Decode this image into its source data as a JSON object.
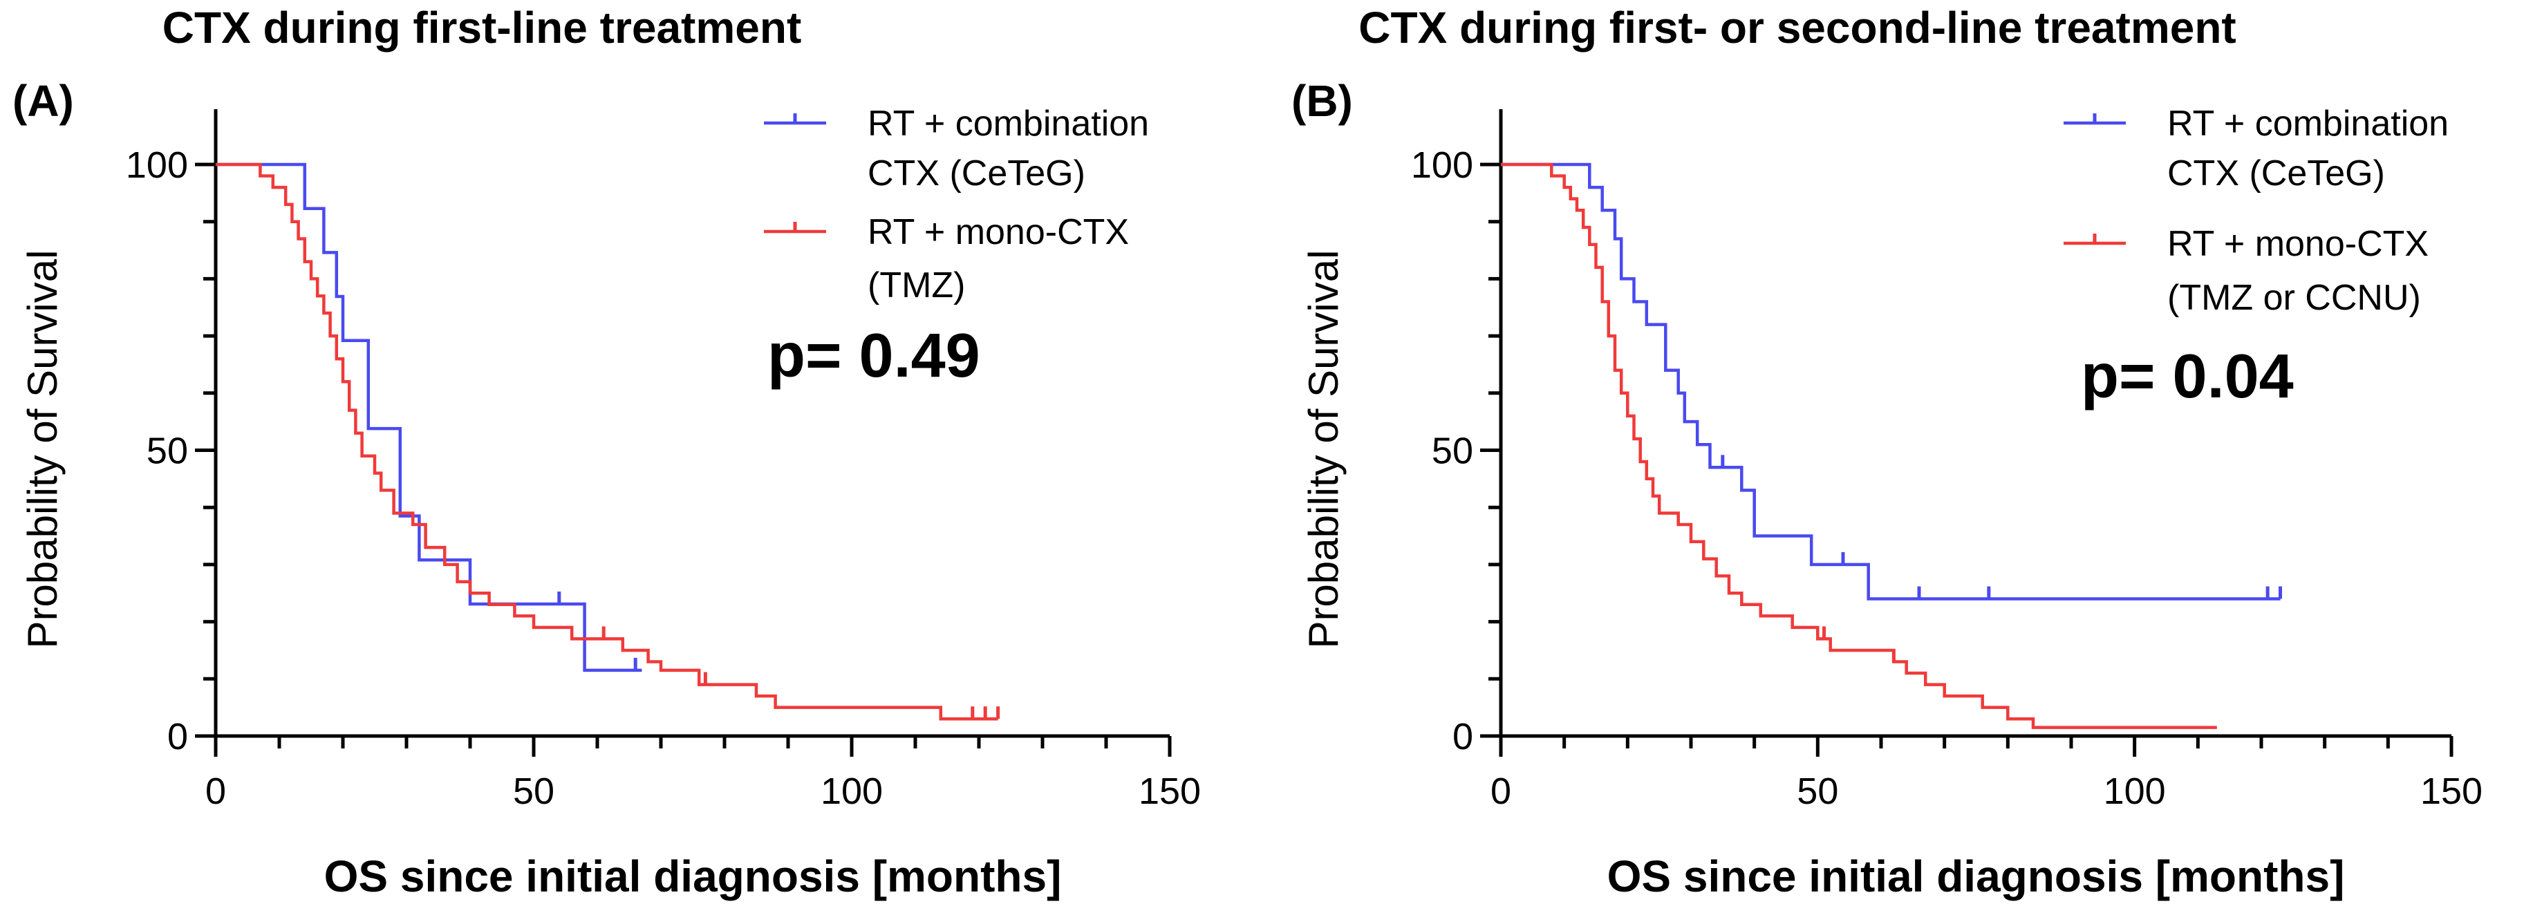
{
  "colors": {
    "blue": "#4a4af0",
    "red": "#f03a3a",
    "axis": "#000000"
  },
  "chart_data": [
    {
      "type": "line",
      "panel_label": "(A)",
      "title": "CTX during first-line treatment",
      "xlabel": "OS since initial diagnosis [months]",
      "ylabel": "Probability of Survival",
      "xlim": [
        0,
        150
      ],
      "ylim": [
        0,
        100
      ],
      "xticks": [
        0,
        50,
        100,
        150
      ],
      "yticks": [
        0,
        50,
        100
      ],
      "xtick_labels": [
        "0",
        "50",
        "100",
        "150"
      ],
      "ytick_labels": [
        "0",
        "50",
        "100"
      ],
      "p_value": "p= 0.49",
      "series": [
        {
          "name": "RT + combination CTX (CeTeG)",
          "legend_lines": [
            "RT + combination",
            "CTX (CeTeG)"
          ],
          "color": "blue",
          "steps": [
            [
              0,
              100
            ],
            [
              14,
              100
            ],
            [
              14,
              92.3
            ],
            [
              17,
              92.3
            ],
            [
              17,
              84.6
            ],
            [
              19,
              84.6
            ],
            [
              19,
              76.9
            ],
            [
              20,
              76.9
            ],
            [
              20,
              69.2
            ],
            [
              24,
              69.2
            ],
            [
              24,
              53.8
            ],
            [
              29,
              53.8
            ],
            [
              29,
              38.5
            ],
            [
              32,
              38.5
            ],
            [
              32,
              30.8
            ],
            [
              40,
              30.8
            ],
            [
              40,
              23.1
            ],
            [
              58,
              23.1
            ],
            [
              58,
              11.5
            ],
            [
              67,
              11.5
            ]
          ],
          "censor": [
            54,
            66
          ]
        },
        {
          "name": "RT + mono-CTX (TMZ)",
          "legend_lines": [
            "RT + mono-CTX",
            "(TMZ)"
          ],
          "color": "red",
          "steps": [
            [
              0,
              100
            ],
            [
              7,
              100
            ],
            [
              7,
              98
            ],
            [
              9,
              98
            ],
            [
              9,
              96
            ],
            [
              11,
              96
            ],
            [
              11,
              93
            ],
            [
              12,
              93
            ],
            [
              12,
              90
            ],
            [
              13,
              90
            ],
            [
              13,
              87
            ],
            [
              14,
              87
            ],
            [
              14,
              83
            ],
            [
              15,
              83
            ],
            [
              15,
              80
            ],
            [
              16,
              80
            ],
            [
              16,
              77
            ],
            [
              17,
              77
            ],
            [
              17,
              74
            ],
            [
              18,
              74
            ],
            [
              18,
              70
            ],
            [
              19,
              70
            ],
            [
              19,
              66
            ],
            [
              20,
              66
            ],
            [
              20,
              62
            ],
            [
              21,
              62
            ],
            [
              21,
              57
            ],
            [
              22,
              57
            ],
            [
              22,
              53
            ],
            [
              23,
              53
            ],
            [
              23,
              49
            ],
            [
              25,
              49
            ],
            [
              25,
              46
            ],
            [
              26,
              46
            ],
            [
              26,
              43
            ],
            [
              28,
              43
            ],
            [
              28,
              39
            ],
            [
              31,
              39
            ],
            [
              31,
              37
            ],
            [
              33,
              37
            ],
            [
              33,
              33
            ],
            [
              36,
              33
            ],
            [
              36,
              30
            ],
            [
              38,
              30
            ],
            [
              38,
              27
            ],
            [
              40,
              27
            ],
            [
              40,
              25
            ],
            [
              43,
              25
            ],
            [
              43,
              23
            ],
            [
              47,
              23
            ],
            [
              47,
              21
            ],
            [
              50,
              21
            ],
            [
              50,
              19
            ],
            [
              56,
              19
            ],
            [
              56,
              17
            ],
            [
              64,
              17
            ],
            [
              64,
              15
            ],
            [
              68,
              15
            ],
            [
              68,
              13
            ],
            [
              70,
              13
            ],
            [
              70,
              11.5
            ],
            [
              76,
              11.5
            ],
            [
              76,
              9
            ],
            [
              85,
              9
            ],
            [
              85,
              7
            ],
            [
              88,
              7
            ],
            [
              88,
              5
            ],
            [
              114,
              5
            ],
            [
              114,
              3
            ],
            [
              123,
              3
            ]
          ],
          "censor": [
            61,
            77,
            119,
            121,
            123
          ]
        }
      ]
    },
    {
      "type": "line",
      "panel_label": "(B)",
      "title": "CTX during first- or second-line treatment",
      "xlabel": "OS since initial diagnosis [months]",
      "ylabel": "Probability of Survival",
      "xlim": [
        0,
        150
      ],
      "ylim": [
        0,
        100
      ],
      "xticks": [
        0,
        50,
        100,
        150
      ],
      "yticks": [
        0,
        50,
        100
      ],
      "xtick_labels": [
        "0",
        "50",
        "100",
        "150"
      ],
      "ytick_labels": [
        "0",
        "50",
        "100"
      ],
      "p_value": "p= 0.04",
      "series": [
        {
          "name": "RT + combination CTX (CeTeG)",
          "legend_lines": [
            "RT + combination",
            "CTX (CeTeG)"
          ],
          "color": "blue",
          "steps": [
            [
              0,
              100
            ],
            [
              14,
              100
            ],
            [
              14,
              96
            ],
            [
              16,
              96
            ],
            [
              16,
              92
            ],
            [
              18,
              92
            ],
            [
              18,
              87
            ],
            [
              19,
              87
            ],
            [
              19,
              80
            ],
            [
              21,
              80
            ],
            [
              21,
              76
            ],
            [
              23,
              76
            ],
            [
              23,
              72
            ],
            [
              26,
              72
            ],
            [
              26,
              64
            ],
            [
              28,
              64
            ],
            [
              28,
              60
            ],
            [
              29,
              60
            ],
            [
              29,
              55
            ],
            [
              31,
              55
            ],
            [
              31,
              51
            ],
            [
              33,
              51
            ],
            [
              33,
              47
            ],
            [
              38,
              47
            ],
            [
              38,
              43
            ],
            [
              40,
              43
            ],
            [
              40,
              35
            ],
            [
              49,
              35
            ],
            [
              49,
              30
            ],
            [
              58,
              30
            ],
            [
              58,
              24
            ],
            [
              123,
              24
            ]
          ],
          "censor": [
            35,
            54,
            66,
            77,
            121,
            123
          ]
        },
        {
          "name": "RT + mono-CTX (TMZ or CCNU)",
          "legend_lines": [
            "RT + mono-CTX",
            "(TMZ or CCNU)"
          ],
          "color": "red",
          "steps": [
            [
              0,
              100
            ],
            [
              8,
              100
            ],
            [
              8,
              98
            ],
            [
              10,
              98
            ],
            [
              10,
              96
            ],
            [
              11,
              96
            ],
            [
              11,
              94
            ],
            [
              12,
              94
            ],
            [
              12,
              92
            ],
            [
              13,
              92
            ],
            [
              13,
              89
            ],
            [
              14,
              89
            ],
            [
              14,
              86
            ],
            [
              15,
              86
            ],
            [
              15,
              82
            ],
            [
              16,
              82
            ],
            [
              16,
              76
            ],
            [
              17,
              76
            ],
            [
              17,
              70
            ],
            [
              18,
              70
            ],
            [
              18,
              64
            ],
            [
              19,
              64
            ],
            [
              19,
              60
            ],
            [
              20,
              60
            ],
            [
              20,
              56
            ],
            [
              21,
              56
            ],
            [
              21,
              52
            ],
            [
              22,
              52
            ],
            [
              22,
              48
            ],
            [
              23,
              48
            ],
            [
              23,
              45
            ],
            [
              24,
              45
            ],
            [
              24,
              42
            ],
            [
              25,
              42
            ],
            [
              25,
              39
            ],
            [
              28,
              39
            ],
            [
              28,
              37
            ],
            [
              30,
              37
            ],
            [
              30,
              34
            ],
            [
              32,
              34
            ],
            [
              32,
              31
            ],
            [
              34,
              31
            ],
            [
              34,
              28
            ],
            [
              36,
              28
            ],
            [
              36,
              25
            ],
            [
              38,
              25
            ],
            [
              38,
              23
            ],
            [
              41,
              23
            ],
            [
              41,
              21
            ],
            [
              46,
              21
            ],
            [
              46,
              19
            ],
            [
              50,
              19
            ],
            [
              50,
              17
            ],
            [
              52,
              17
            ],
            [
              52,
              15
            ],
            [
              62,
              15
            ],
            [
              62,
              13
            ],
            [
              64,
              13
            ],
            [
              64,
              11
            ],
            [
              67,
              11
            ],
            [
              67,
              9
            ],
            [
              70,
              9
            ],
            [
              70,
              7
            ],
            [
              76,
              7
            ],
            [
              76,
              5
            ],
            [
              80,
              5
            ],
            [
              80,
              3
            ],
            [
              84,
              3
            ],
            [
              84,
              1.5
            ],
            [
              113,
              1.5
            ]
          ],
          "censor": [
            51,
            62
          ]
        }
      ]
    }
  ]
}
